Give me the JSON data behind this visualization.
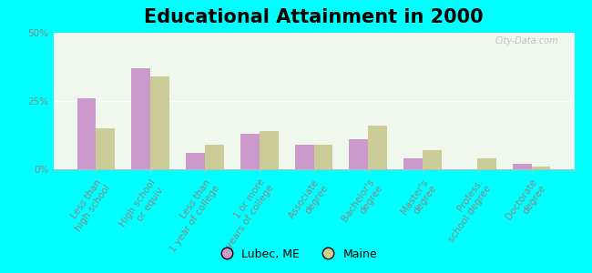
{
  "title": "Educational Attainment in 2000",
  "categories": [
    "Less than\nhigh school",
    "High school\nor equiv.",
    "Less than\n1 year of college",
    "1 or more\nyears of college",
    "Associate\ndegree",
    "Bachelor's\ndegree",
    "Master's\ndegree",
    "Profess.\nschool degree",
    "Doctorate\ndegree"
  ],
  "lubec": [
    26.0,
    37.0,
    6.0,
    13.0,
    9.0,
    11.0,
    4.0,
    0.0,
    2.0
  ],
  "maine": [
    15.0,
    34.0,
    9.0,
    14.0,
    9.0,
    16.0,
    7.0,
    4.0,
    1.0
  ],
  "lubec_color": "#cc99cc",
  "maine_color": "#cccc99",
  "background_color": "#00ffff",
  "plot_bg_color": "#f0f8ee",
  "ylim": [
    0,
    50
  ],
  "yticks": [
    0,
    25,
    50
  ],
  "ytick_labels": [
    "0%",
    "25%",
    "50%"
  ],
  "legend_lubec": "Lubec, ME",
  "legend_maine": "Maine",
  "watermark": "City-Data.com",
  "title_fontsize": 15,
  "tick_fontsize": 7.5,
  "legend_fontsize": 9,
  "label_color": "#888888"
}
